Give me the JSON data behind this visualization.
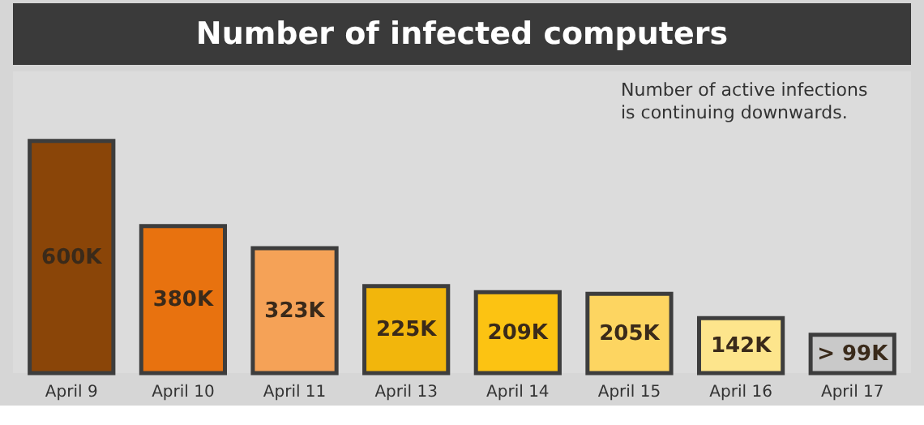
{
  "chart_data": {
    "type": "bar",
    "title": "Number of infected computers",
    "categories": [
      "April 9",
      "April 10",
      "April 11",
      "April 13",
      "April 14",
      "April 15",
      "April 16",
      "April 17"
    ],
    "values": [
      600,
      380,
      323,
      225,
      209,
      205,
      142,
      99
    ],
    "value_labels": [
      "600K",
      "380K",
      "323K",
      "225K",
      "209K",
      "205K",
      "142K",
      "> 99K"
    ],
    "colors": [
      "#8a4508",
      "#e8720f",
      "#f5a257",
      "#f2b60c",
      "#fcc312",
      "#fdd561",
      "#fde58c",
      "#c9c9c9"
    ],
    "annotations": [
      "Number of active infections is continuing downwards."
    ],
    "legend": false
  }
}
